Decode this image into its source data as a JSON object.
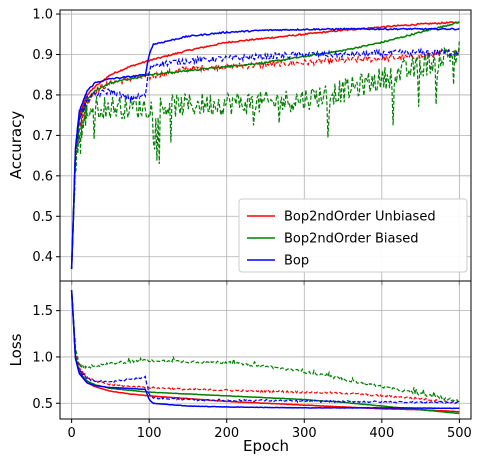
{
  "chart_data": [
    {
      "type": "line",
      "panel": "accuracy",
      "title": "",
      "xlabel": "",
      "ylabel": "Accuracy",
      "xlim": [
        -15,
        515
      ],
      "ylim": [
        0.34,
        1.01
      ],
      "xticks": [
        0,
        100,
        200,
        300,
        400,
        500
      ],
      "xtick_labels_visible": false,
      "yticks": [
        0.4,
        0.5,
        0.6,
        0.7,
        0.8,
        0.9,
        1.0
      ],
      "ytick_labels": [
        "0.4",
        "0.5",
        "0.6",
        "0.7",
        "0.8",
        "0.9",
        "1.0"
      ],
      "grid": true,
      "legend": {
        "placement": "lower-right",
        "entries": [
          "Bop2ndOrder Unbiased",
          "Bop2ndOrder Biased",
          "Bop"
        ]
      },
      "series": [
        {
          "name": "Bop2ndOrder Unbiased",
          "color": "#ff0000",
          "style": "solid",
          "role": "train",
          "x": [
            0,
            5,
            10,
            20,
            30,
            50,
            75,
            100,
            150,
            200,
            250,
            300,
            350,
            400,
            450,
            500
          ],
          "y": [
            0.37,
            0.66,
            0.75,
            0.8,
            0.82,
            0.85,
            0.87,
            0.885,
            0.91,
            0.93,
            0.94,
            0.95,
            0.96,
            0.968,
            0.975,
            0.98
          ]
        },
        {
          "name": "Bop2ndOrder Unbiased",
          "color": "#ff0000",
          "style": "dashed",
          "role": "test",
          "x": [
            0,
            5,
            10,
            20,
            30,
            50,
            75,
            100,
            150,
            200,
            250,
            300,
            350,
            400,
            450,
            500
          ],
          "y": [
            0.37,
            0.64,
            0.72,
            0.78,
            0.81,
            0.83,
            0.84,
            0.845,
            0.865,
            0.87,
            0.875,
            0.88,
            0.885,
            0.89,
            0.895,
            0.91
          ]
        },
        {
          "name": "Bop2ndOrder Biased",
          "color": "#008000",
          "style": "solid",
          "role": "train",
          "x": [
            0,
            5,
            10,
            20,
            30,
            50,
            75,
            100,
            150,
            200,
            250,
            300,
            350,
            400,
            450,
            500
          ],
          "y": [
            0.37,
            0.66,
            0.74,
            0.79,
            0.81,
            0.83,
            0.84,
            0.85,
            0.86,
            0.87,
            0.88,
            0.895,
            0.91,
            0.93,
            0.955,
            0.98
          ]
        },
        {
          "name": "Bop2ndOrder Biased",
          "color": "#008000",
          "style": "dashed",
          "role": "test",
          "x": [
            0,
            5,
            10,
            20,
            30,
            50,
            75,
            100,
            150,
            200,
            250,
            300,
            350,
            400,
            450,
            500
          ],
          "y": [
            0.37,
            0.62,
            0.7,
            0.76,
            0.77,
            0.77,
            0.77,
            0.77,
            0.775,
            0.78,
            0.78,
            0.79,
            0.81,
            0.84,
            0.87,
            0.91
          ]
        },
        {
          "name": "Bop",
          "color": "#0000ff",
          "style": "solid",
          "role": "train",
          "x": [
            0,
            5,
            10,
            20,
            30,
            50,
            75,
            95,
            100,
            105,
            150,
            200,
            250,
            300,
            350,
            400,
            450,
            500
          ],
          "y": [
            0.37,
            0.67,
            0.76,
            0.81,
            0.83,
            0.84,
            0.845,
            0.85,
            0.9,
            0.925,
            0.945,
            0.955,
            0.96,
            0.962,
            0.963,
            0.963,
            0.963,
            0.963
          ]
        },
        {
          "name": "Bop",
          "color": "#0000ff",
          "style": "dashed",
          "role": "test",
          "x": [
            0,
            5,
            10,
            20,
            30,
            50,
            75,
            95,
            100,
            105,
            150,
            200,
            250,
            300,
            350,
            400,
            450,
            500
          ],
          "y": [
            0.37,
            0.66,
            0.74,
            0.79,
            0.8,
            0.81,
            0.79,
            0.8,
            0.86,
            0.875,
            0.885,
            0.89,
            0.895,
            0.9,
            0.9,
            0.903,
            0.905,
            0.905
          ]
        }
      ]
    },
    {
      "type": "line",
      "panel": "loss",
      "title": "",
      "xlabel": "Epoch",
      "ylabel": "Loss",
      "xlim": [
        -15,
        515
      ],
      "ylim": [
        0.33,
        1.82
      ],
      "xticks": [
        0,
        100,
        200,
        300,
        400,
        500
      ],
      "xtick_labels": [
        "0",
        "100",
        "200",
        "300",
        "400",
        "500"
      ],
      "yticks": [
        0.5,
        1.0,
        1.5
      ],
      "ytick_labels": [
        "0.5",
        "1.0",
        "1.5"
      ],
      "grid": true,
      "series": [
        {
          "name": "Bop2ndOrder Unbiased",
          "color": "#ff0000",
          "style": "solid",
          "role": "train",
          "x": [
            0,
            5,
            10,
            20,
            30,
            50,
            75,
            100,
            150,
            200,
            250,
            300,
            350,
            400,
            450,
            500
          ],
          "y": [
            1.72,
            1.0,
            0.82,
            0.72,
            0.68,
            0.63,
            0.6,
            0.58,
            0.55,
            0.52,
            0.5,
            0.48,
            0.46,
            0.44,
            0.43,
            0.41
          ]
        },
        {
          "name": "Bop2ndOrder Unbiased",
          "color": "#ff0000",
          "style": "dashed",
          "role": "test",
          "x": [
            0,
            5,
            10,
            20,
            30,
            50,
            75,
            100,
            150,
            200,
            250,
            300,
            350,
            400,
            450,
            500
          ],
          "y": [
            1.72,
            1.05,
            0.88,
            0.78,
            0.74,
            0.7,
            0.68,
            0.67,
            0.65,
            0.64,
            0.63,
            0.62,
            0.61,
            0.58,
            0.55,
            0.5
          ]
        },
        {
          "name": "Bop2ndOrder Biased",
          "color": "#008000",
          "style": "solid",
          "role": "train",
          "x": [
            0,
            5,
            10,
            20,
            30,
            50,
            75,
            100,
            150,
            200,
            250,
            300,
            350,
            400,
            450,
            500
          ],
          "y": [
            1.72,
            1.0,
            0.83,
            0.74,
            0.7,
            0.66,
            0.64,
            0.62,
            0.6,
            0.58,
            0.56,
            0.54,
            0.51,
            0.47,
            0.43,
            0.39
          ]
        },
        {
          "name": "Bop2ndOrder Biased",
          "color": "#008000",
          "style": "dashed",
          "role": "test",
          "x": [
            0,
            5,
            10,
            20,
            30,
            50,
            75,
            100,
            150,
            200,
            250,
            300,
            350,
            400,
            450,
            500
          ],
          "y": [
            1.72,
            1.08,
            0.92,
            0.88,
            0.9,
            0.93,
            0.95,
            0.96,
            0.95,
            0.94,
            0.9,
            0.84,
            0.76,
            0.68,
            0.6,
            0.52
          ]
        },
        {
          "name": "Bop",
          "color": "#0000ff",
          "style": "solid",
          "role": "train",
          "x": [
            0,
            5,
            10,
            20,
            30,
            50,
            75,
            95,
            100,
            105,
            150,
            200,
            250,
            300,
            350,
            400,
            450,
            500
          ],
          "y": [
            1.72,
            0.98,
            0.82,
            0.72,
            0.69,
            0.67,
            0.66,
            0.65,
            0.54,
            0.5,
            0.47,
            0.46,
            0.455,
            0.45,
            0.45,
            0.45,
            0.448,
            0.445
          ]
        },
        {
          "name": "Bop",
          "color": "#0000ff",
          "style": "dashed",
          "role": "test",
          "x": [
            0,
            5,
            10,
            20,
            30,
            50,
            75,
            95,
            100,
            105,
            150,
            200,
            250,
            300,
            350,
            400,
            450,
            500
          ],
          "y": [
            1.72,
            1.0,
            0.85,
            0.77,
            0.74,
            0.73,
            0.76,
            0.78,
            0.6,
            0.56,
            0.54,
            0.53,
            0.53,
            0.52,
            0.52,
            0.515,
            0.51,
            0.51
          ]
        }
      ]
    }
  ]
}
